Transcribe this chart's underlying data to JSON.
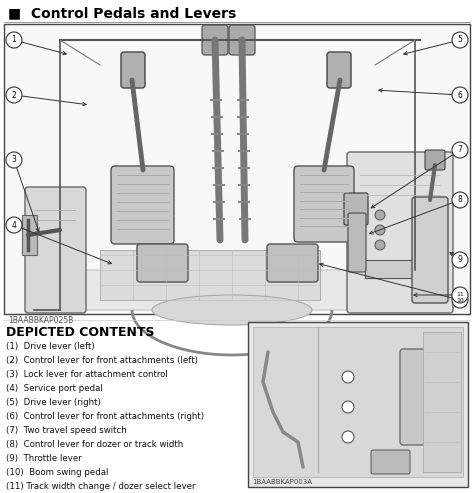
{
  "title": "■  Control Pedals and Levers",
  "title_fontsize": 10,
  "bg_color": "#ffffff",
  "label_code": "1BAABBKAP025B",
  "label_code2": "1BAABBKAP003A",
  "depicted_title": "DEPICTED CONTENTS",
  "items": [
    "(1)  Drive lever (left)",
    "(2)  Control lever for front attachments (left)",
    "(3)  Lock lever for attachment control",
    "(4)  Service port pedal",
    "(5)  Drive lever (right)",
    "(6)  Control lever for front attachments (right)",
    "(7)  Two travel speed switch",
    "(8)  Control lever for dozer or track width",
    "(9)  Throttle lever",
    "(10)  Boom swing pedal",
    "(11) Track width change / dozer select lever"
  ]
}
